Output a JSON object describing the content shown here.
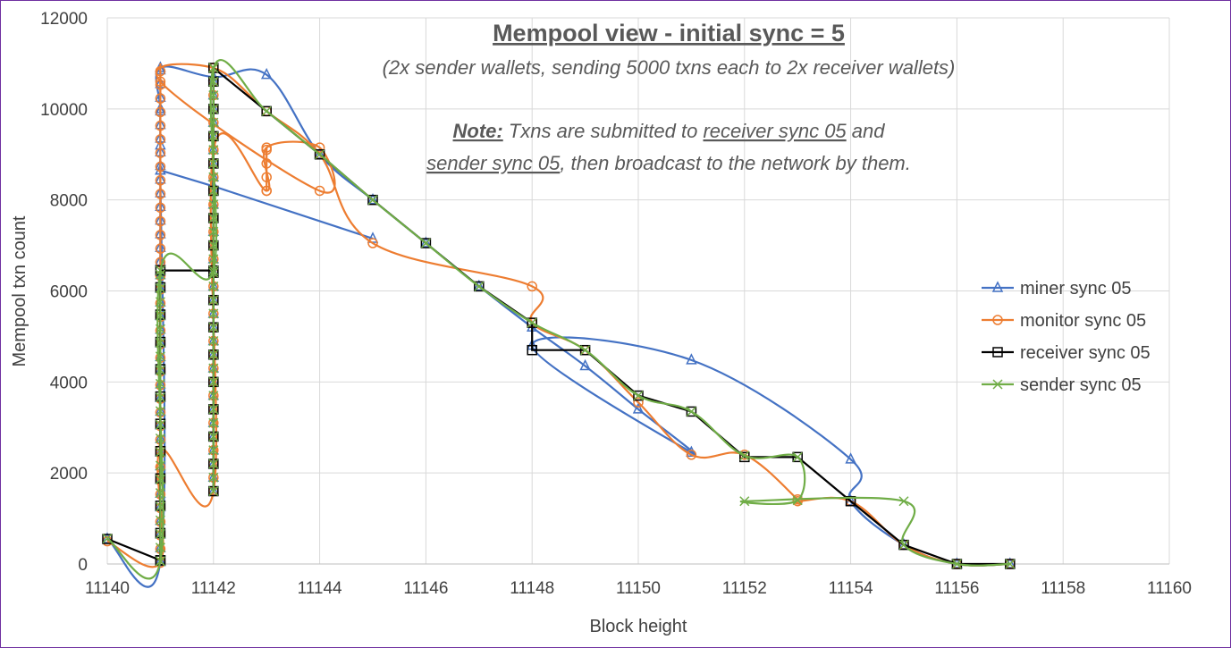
{
  "chart_data": {
    "type": "scatter",
    "title": "Mempool view - initial sync = 5",
    "subtitle": "(2x sender wallets, sending 5000 txns each to 2x receiver wallets)",
    "note": {
      "label": "Note:",
      "line1_text": " Txns are submitted to ",
      "line1_link": "receiver sync 05",
      "line1_end": " and",
      "line2_link": "sender sync 05",
      "line2_end": ", then broadcast to the network by them."
    },
    "xlabel": "Block height",
    "ylabel": "Mempool txn count",
    "xlim": [
      11140,
      11160
    ],
    "ylim": [
      0,
      12000
    ],
    "xticks": [
      11140,
      11142,
      11144,
      11146,
      11148,
      11150,
      11152,
      11154,
      11156,
      11158,
      11160
    ],
    "yticks": [
      0,
      2000,
      4000,
      6000,
      8000,
      10000,
      12000
    ],
    "grid": true,
    "legend_position": "right",
    "series": [
      {
        "name": "miner sync 05",
        "color": "#4472c4",
        "marker": "triangle",
        "points": [
          [
            11140,
            550
          ],
          [
            11141,
            50
          ],
          [
            11141,
            8650
          ],
          [
            11141,
            9200
          ],
          [
            11141,
            10000
          ],
          [
            11141,
            10900
          ],
          [
            11142,
            10700
          ],
          [
            11143,
            10750
          ],
          [
            11144,
            9000
          ],
          [
            11145,
            8000
          ],
          [
            11146,
            7050
          ],
          [
            11147,
            6100
          ],
          [
            11148,
            5200
          ],
          [
            11149,
            4350
          ],
          [
            11150,
            3400
          ],
          [
            11151,
            2450
          ],
          [
            11148,
            4800
          ],
          [
            11151,
            4480
          ],
          [
            11154,
            2300
          ],
          [
            11154,
            1380
          ],
          [
            11155,
            420
          ],
          [
            11156,
            0
          ],
          [
            11157,
            0
          ]
        ],
        "extra": [
          [
            11141,
            8650
          ],
          [
            11142,
            8300
          ],
          [
            11145,
            7150
          ]
        ],
        "verticals": [
          [
            11142,
            1600,
            10800
          ],
          [
            11141,
            50,
            10900
          ]
        ]
      },
      {
        "name": "monitor sync 05",
        "color": "#ed7d31",
        "marker": "circle",
        "points": [
          [
            11140,
            500
          ],
          [
            11141,
            30
          ],
          [
            11141,
            2500
          ],
          [
            11142,
            1600
          ],
          [
            11142,
            9100
          ],
          [
            11143,
            8200
          ],
          [
            11143,
            9150
          ],
          [
            11144,
            9150
          ],
          [
            11144,
            8200
          ],
          [
            11141,
            10600
          ],
          [
            11142,
            10900
          ],
          [
            11143,
            9950
          ],
          [
            11144,
            9000
          ],
          [
            11145,
            7050
          ],
          [
            11148,
            6100
          ],
          [
            11148,
            5300
          ],
          [
            11149,
            4700
          ],
          [
            11150,
            3550
          ],
          [
            11151,
            2400
          ],
          [
            11152,
            2400
          ],
          [
            11153,
            1420
          ],
          [
            11153,
            1380
          ],
          [
            11154,
            1380
          ],
          [
            11155,
            420
          ],
          [
            11156,
            0
          ],
          [
            11157,
            0
          ]
        ],
        "verticals": [
          [
            11141,
            30,
            11000
          ],
          [
            11142,
            1600,
            10900
          ],
          [
            11143,
            8200,
            9150
          ]
        ]
      },
      {
        "name": "receiver sync 05",
        "color": "#000000",
        "marker": "square",
        "points": [
          [
            11140,
            550
          ],
          [
            11141,
            80
          ],
          [
            11141,
            6450
          ],
          [
            11142,
            6450
          ],
          [
            11142,
            10900
          ],
          [
            11143,
            9950
          ],
          [
            11144,
            9000
          ],
          [
            11145,
            8000
          ],
          [
            11146,
            7050
          ],
          [
            11147,
            6100
          ],
          [
            11148,
            5300
          ],
          [
            11148,
            4700
          ],
          [
            11149,
            4700
          ],
          [
            11150,
            3700
          ],
          [
            11151,
            3350
          ],
          [
            11152,
            2350
          ],
          [
            11153,
            2350
          ],
          [
            11154,
            1380
          ],
          [
            11155,
            420
          ],
          [
            11156,
            0
          ],
          [
            11157,
            0
          ]
        ],
        "verticals": [
          [
            11141,
            80,
            6450
          ],
          [
            11142,
            1600,
            10900
          ]
        ]
      },
      {
        "name": "sender sync 05",
        "color": "#70ad47",
        "marker": "cross",
        "points": [
          [
            11140,
            560
          ],
          [
            11141,
            60
          ],
          [
            11141,
            6450
          ],
          [
            11142,
            6450
          ],
          [
            11142,
            10900
          ],
          [
            11143,
            9950
          ],
          [
            11144,
            9000
          ],
          [
            11145,
            8000
          ],
          [
            11146,
            7050
          ],
          [
            11147,
            6100
          ],
          [
            11148,
            5300
          ],
          [
            11149,
            4700
          ],
          [
            11150,
            3700
          ],
          [
            11151,
            3350
          ],
          [
            11152,
            2380
          ],
          [
            11153,
            2350
          ],
          [
            11153,
            1400
          ],
          [
            11152,
            1380
          ],
          [
            11155,
            1380
          ],
          [
            11155,
            420
          ],
          [
            11156,
            0
          ],
          [
            11157,
            0
          ]
        ],
        "verticals": [
          [
            11141,
            60,
            6450
          ],
          [
            11142,
            1600,
            10900
          ]
        ]
      }
    ]
  }
}
